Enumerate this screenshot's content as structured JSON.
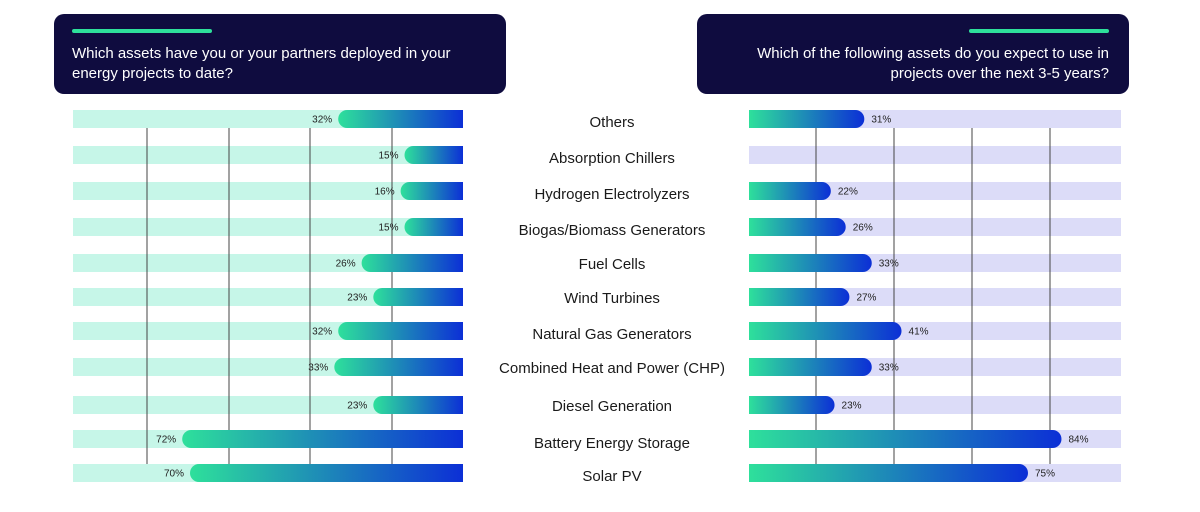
{
  "chart_data": [
    {
      "type": "bar",
      "orientation": "horizontal",
      "direction": "right-to-left",
      "title": "Which assets have you or your partners deployed in your energy projects to date?",
      "categories": [
        "Others",
        "Absorption Chillers",
        "Hydrogen Electrolyzers",
        "Biogas/Biomass Generators",
        "Fuel Cells",
        "Wind Turbines",
        "Natural Gas Generators",
        "Combined Heat and Power (CHP)",
        "Diesel Generation",
        "Battery Energy Storage",
        "Solar PV"
      ],
      "values": [
        32,
        15,
        16,
        15,
        26,
        23,
        32,
        33,
        23,
        72,
        70
      ],
      "value_labels": [
        "32%",
        "15%",
        "16%",
        "15%",
        "26%",
        "23%",
        "32%",
        "33%",
        "23%",
        "72%",
        "70%"
      ],
      "xlim": [
        0,
        100
      ]
    },
    {
      "type": "bar",
      "orientation": "horizontal",
      "direction": "left-to-right",
      "title": "Which of the following assets do you expect to use in projects over the next 3-5 years?",
      "categories": [
        "Others",
        "Absorption Chillers",
        "Hydrogen Electrolyzers",
        "Biogas/Biomass Generators",
        "Fuel Cells",
        "Wind Turbines",
        "Natural Gas Generators",
        "Combined Heat and Power (CHP)",
        "Diesel Generation",
        "Battery Energy Storage",
        "Solar PV"
      ],
      "values": [
        31,
        0,
        22,
        26,
        33,
        27,
        41,
        33,
        23,
        84,
        75
      ],
      "value_labels": [
        "31%",
        "",
        "22%",
        "26%",
        "33%",
        "27%",
        "41%",
        "33%",
        "23%",
        "84%",
        "75%"
      ],
      "xlim": [
        0,
        100
      ]
    }
  ],
  "colors": {
    "header_bg": "#0f0c3f",
    "accent": "#2ee09b",
    "left_track": "#c6f6e8",
    "right_track": "#dcdcf8",
    "bar_start": "#2ee09b",
    "bar_end": "#0c2fd6"
  }
}
